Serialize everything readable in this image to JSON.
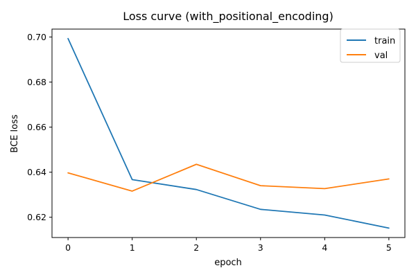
{
  "chart_data": {
    "type": "line",
    "title": "Loss curve (with_positional_encoding)",
    "xlabel": "epoch",
    "ylabel": "BCE loss",
    "x": [
      0,
      1,
      2,
      3,
      4,
      5
    ],
    "xlim": [
      -0.25,
      5.25
    ],
    "ylim": [
      0.611,
      0.7035
    ],
    "xticks": [
      0,
      1,
      2,
      3,
      4,
      5
    ],
    "yticks": [
      0.62,
      0.64,
      0.66,
      0.68,
      0.7
    ],
    "ytick_labels": [
      "0.62",
      "0.64",
      "0.66",
      "0.68",
      "0.70"
    ],
    "grid": false,
    "legend_position": "top-right",
    "series": [
      {
        "name": "train",
        "color": "#1f77b4",
        "values": [
          0.6993,
          0.6367,
          0.6323,
          0.6235,
          0.621,
          0.6152
        ]
      },
      {
        "name": "val",
        "color": "#ff7f0e",
        "values": [
          0.6397,
          0.6316,
          0.6435,
          0.634,
          0.6327,
          0.637
        ]
      }
    ]
  }
}
